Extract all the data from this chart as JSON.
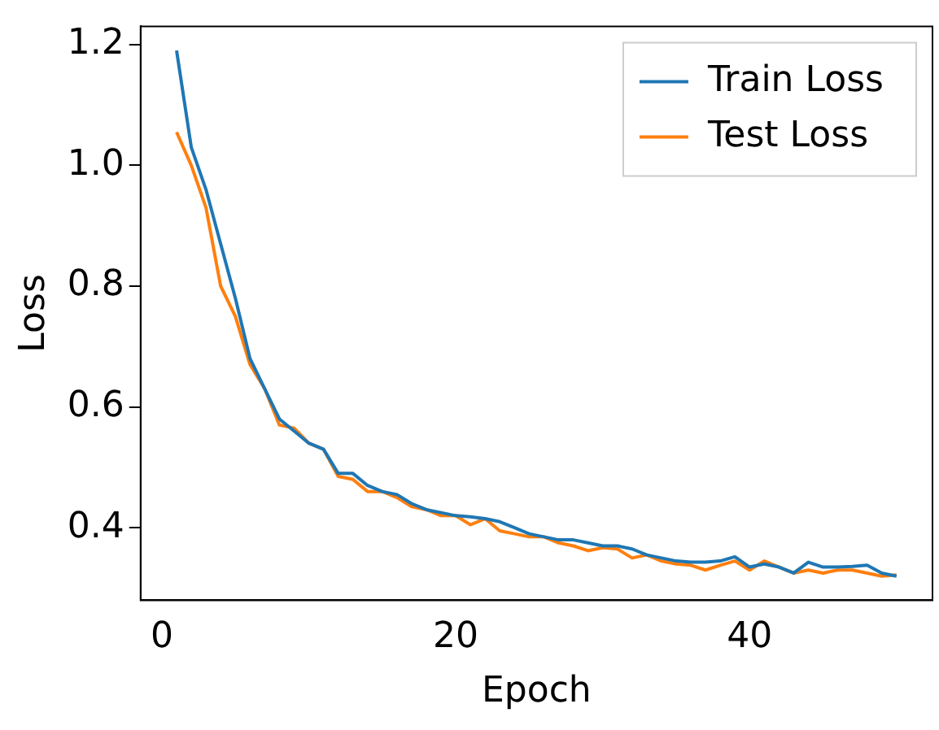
{
  "chart_data": {
    "type": "line",
    "xlabel": "Epoch",
    "ylabel": "Loss",
    "x": [
      1,
      2,
      3,
      4,
      5,
      6,
      7,
      8,
      9,
      10,
      11,
      12,
      13,
      14,
      15,
      16,
      17,
      18,
      19,
      20,
      21,
      22,
      23,
      24,
      25,
      26,
      27,
      28,
      29,
      30,
      31,
      32,
      33,
      34,
      35,
      36,
      37,
      38,
      39,
      40,
      41,
      42,
      43,
      44,
      45,
      46,
      47,
      48,
      49,
      50
    ],
    "series": [
      {
        "name": "Train Loss",
        "color": "#1f77b4",
        "values": [
          1.19,
          1.03,
          0.96,
          0.87,
          0.78,
          0.68,
          0.63,
          0.58,
          0.56,
          0.54,
          0.53,
          0.49,
          0.49,
          0.47,
          0.46,
          0.455,
          0.44,
          0.43,
          0.425,
          0.42,
          0.418,
          0.415,
          0.41,
          0.4,
          0.39,
          0.385,
          0.38,
          0.38,
          0.375,
          0.37,
          0.37,
          0.365,
          0.355,
          0.35,
          0.345,
          0.343,
          0.343,
          0.345,
          0.352,
          0.335,
          0.34,
          0.335,
          0.325,
          0.343,
          0.335,
          0.335,
          0.336,
          0.338,
          0.325,
          0.32
        ]
      },
      {
        "name": "Test Loss",
        "color": "#ff7f0e",
        "values": [
          1.055,
          1.0,
          0.93,
          0.8,
          0.75,
          0.67,
          0.63,
          0.57,
          0.565,
          0.54,
          0.53,
          0.485,
          0.48,
          0.46,
          0.46,
          0.45,
          0.435,
          0.43,
          0.42,
          0.42,
          0.405,
          0.415,
          0.395,
          0.39,
          0.385,
          0.385,
          0.375,
          0.37,
          0.362,
          0.367,
          0.365,
          0.35,
          0.355,
          0.345,
          0.34,
          0.338,
          0.33,
          0.338,
          0.345,
          0.33,
          0.345,
          0.335,
          0.325,
          0.33,
          0.325,
          0.33,
          0.33,
          0.325,
          0.32,
          0.322
        ]
      }
    ],
    "xlim": [
      -1.45,
      52.45
    ],
    "xticks": [
      0,
      20,
      40
    ],
    "ylim": [
      0.28,
      1.23
    ],
    "yticks": [
      0.4,
      0.6,
      0.8,
      {
        "value": 1.0,
        "label": "1.0"
      },
      1.2
    ],
    "legend": "top right",
    "marker": "none",
    "line_style": "solid",
    "grid": false
  }
}
